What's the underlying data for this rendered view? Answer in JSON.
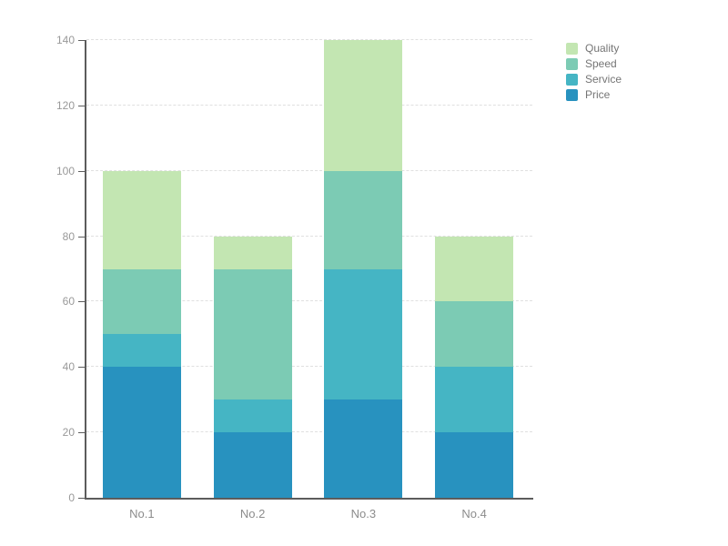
{
  "chart_data": {
    "type": "bar",
    "stacked": true,
    "title": "",
    "xlabel": "",
    "ylabel": "",
    "categories": [
      "No.1",
      "No.2",
      "No.3",
      "No.4"
    ],
    "series": [
      {
        "name": "Price",
        "color": "#2892bf",
        "values": [
          40,
          20,
          30,
          20
        ]
      },
      {
        "name": "Service",
        "color": "#45b5c4",
        "values": [
          10,
          10,
          40,
          20
        ]
      },
      {
        "name": "Speed",
        "color": "#7ccbb4",
        "values": [
          20,
          40,
          30,
          20
        ]
      },
      {
        "name": "Quality",
        "color": "#c3e6b2",
        "values": [
          30,
          10,
          40,
          20
        ]
      }
    ],
    "stack_totals": [
      100,
      80,
      140,
      80
    ],
    "legend": {
      "position": "top-right",
      "items": [
        "Quality",
        "Speed",
        "Service",
        "Price"
      ]
    },
    "y_axis": {
      "min": 0,
      "max": 140,
      "tick_interval": 20,
      "tick_labels": [
        "0",
        "20",
        "40",
        "60",
        "80",
        "100",
        "120",
        "140"
      ]
    },
    "x_axis": {
      "labels": [
        "No.1",
        "No.2",
        "No.3",
        "No.4"
      ]
    },
    "grid": {
      "show": true,
      "style": "dashed",
      "color": "#e0e0e0"
    },
    "colors": {
      "background": "#ffffff",
      "axis": "#5c5c5c",
      "y_tick_label": "#999999",
      "x_tick_label": "#8c8c8c",
      "legend_text": "#757575"
    }
  }
}
